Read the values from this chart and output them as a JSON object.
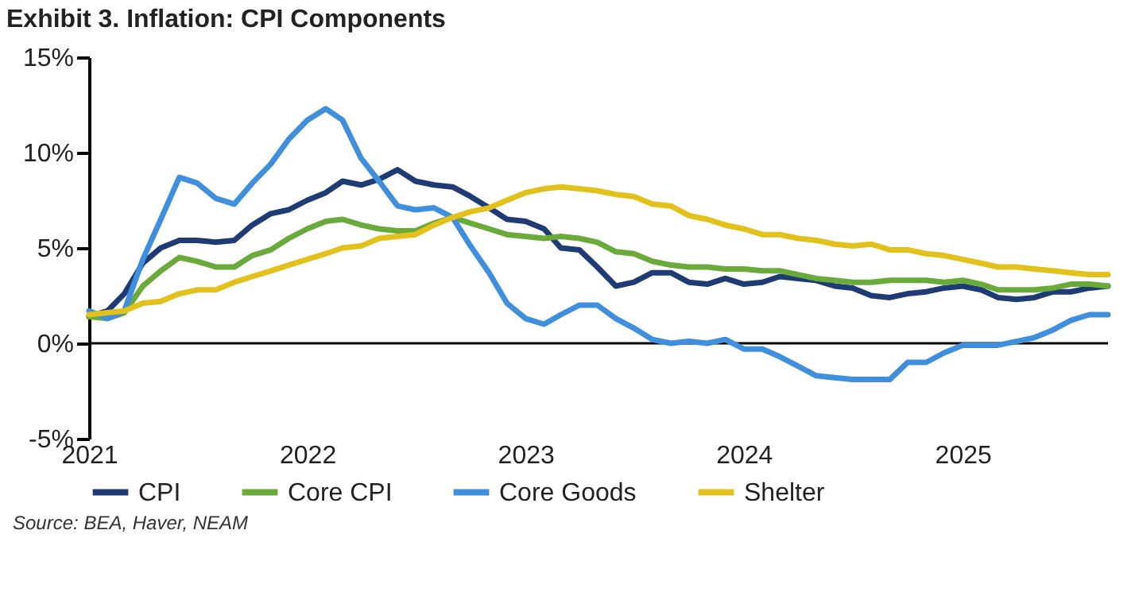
{
  "chart_data": {
    "type": "line",
    "title": "Exhibit 3. Inflation: CPI Components",
    "annotations": [
      "Source: BEA, Haver, NEAM"
    ],
    "x": [
      "2021-01",
      "2021-02",
      "2021-03",
      "2021-04",
      "2021-05",
      "2021-06",
      "2021-07",
      "2021-08",
      "2021-09",
      "2021-10",
      "2021-11",
      "2021-12",
      "2022-01",
      "2022-02",
      "2022-03",
      "2022-04",
      "2022-05",
      "2022-06",
      "2022-07",
      "2022-08",
      "2022-09",
      "2022-10",
      "2022-11",
      "2022-12",
      "2023-01",
      "2023-02",
      "2023-03",
      "2023-04",
      "2023-05",
      "2023-06",
      "2023-07",
      "2023-08",
      "2023-09",
      "2023-10",
      "2023-11",
      "2023-12",
      "2024-01",
      "2024-02",
      "2024-03",
      "2024-04",
      "2024-05",
      "2024-06",
      "2024-07",
      "2024-08",
      "2024-09",
      "2024-10",
      "2024-11",
      "2024-12",
      "2025-01",
      "2025-02",
      "2025-03",
      "2025-04",
      "2025-05",
      "2025-06",
      "2025-07",
      "2025-08",
      "2025-09"
    ],
    "series": [
      {
        "name": "CPI",
        "color": "#1f3b73",
        "values": [
          1.4,
          1.7,
          2.6,
          4.2,
          5.0,
          5.4,
          5.4,
          5.3,
          5.4,
          6.2,
          6.8,
          7.0,
          7.5,
          7.9,
          8.5,
          8.3,
          8.6,
          9.1,
          8.5,
          8.3,
          8.2,
          7.7,
          7.1,
          6.5,
          6.4,
          6.0,
          5.0,
          4.9,
          4.0,
          3.0,
          3.2,
          3.7,
          3.7,
          3.2,
          3.1,
          3.4,
          3.1,
          3.2,
          3.5,
          3.4,
          3.3,
          3.0,
          2.9,
          2.5,
          2.4,
          2.6,
          2.7,
          2.9,
          3.0,
          2.8,
          2.4,
          2.3,
          2.4,
          2.7,
          2.7,
          2.9,
          3.0
        ]
      },
      {
        "name": "Core CPI",
        "color": "#6aaa3a",
        "values": [
          1.4,
          1.3,
          1.6,
          3.0,
          3.8,
          4.5,
          4.3,
          4.0,
          4.0,
          4.6,
          4.9,
          5.5,
          6.0,
          6.4,
          6.5,
          6.2,
          6.0,
          5.9,
          5.9,
          6.3,
          6.6,
          6.3,
          6.0,
          5.7,
          5.6,
          5.5,
          5.6,
          5.5,
          5.3,
          4.8,
          4.7,
          4.3,
          4.1,
          4.0,
          4.0,
          3.9,
          3.9,
          3.8,
          3.8,
          3.6,
          3.4,
          3.3,
          3.2,
          3.2,
          3.3,
          3.3,
          3.3,
          3.2,
          3.3,
          3.1,
          2.8,
          2.8,
          2.8,
          2.9,
          3.1,
          3.1,
          3.0
        ]
      },
      {
        "name": "Core Goods",
        "color": "#3f8fdc",
        "values": [
          1.7,
          1.3,
          1.7,
          4.4,
          6.5,
          8.7,
          8.4,
          7.6,
          7.3,
          8.4,
          9.4,
          10.7,
          11.7,
          12.3,
          11.7,
          9.7,
          8.5,
          7.2,
          7.0,
          7.1,
          6.6,
          5.1,
          3.7,
          2.1,
          1.3,
          1.0,
          1.5,
          2.0,
          2.0,
          1.3,
          0.8,
          0.2,
          0.0,
          0.1,
          0.0,
          0.2,
          -0.3,
          -0.3,
          -0.7,
          -1.2,
          -1.7,
          -1.8,
          -1.9,
          -1.9,
          -1.9,
          -1.0,
          -1.0,
          -0.5,
          -0.1,
          -0.1,
          -0.1,
          0.1,
          0.3,
          0.7,
          1.2,
          1.5,
          1.5
        ]
      },
      {
        "name": "Shelter",
        "color": "#e3c11c",
        "values": [
          1.5,
          1.6,
          1.7,
          2.1,
          2.2,
          2.6,
          2.8,
          2.8,
          3.2,
          3.5,
          3.8,
          4.1,
          4.4,
          4.7,
          5.0,
          5.1,
          5.5,
          5.6,
          5.7,
          6.2,
          6.6,
          6.9,
          7.1,
          7.5,
          7.9,
          8.1,
          8.2,
          8.1,
          8.0,
          7.8,
          7.7,
          7.3,
          7.2,
          6.7,
          6.5,
          6.2,
          6.0,
          5.7,
          5.7,
          5.5,
          5.4,
          5.2,
          5.1,
          5.2,
          4.9,
          4.9,
          4.7,
          4.6,
          4.4,
          4.2,
          4.0,
          4.0,
          3.9,
          3.8,
          3.7,
          3.6,
          3.6
        ]
      }
    ],
    "xlim": [
      "2021-01",
      "2025-09"
    ],
    "xticks": [
      "2021",
      "2022",
      "2023",
      "2024",
      "2025"
    ],
    "ylim": [
      -5,
      15
    ],
    "yticks": [
      {
        "value": -5,
        "label": "-5%"
      },
      {
        "value": 0,
        "label": "0%"
      },
      {
        "value": 5,
        "label": "5%"
      },
      {
        "value": 10,
        "label": "10%"
      },
      {
        "value": 15,
        "label": "15%"
      }
    ],
    "ref_lines": [
      {
        "axis": "y",
        "value": 0,
        "color": "#000000"
      }
    ],
    "grid": false,
    "legend": "bottom",
    "marker": "none",
    "line_style": "solid"
  }
}
